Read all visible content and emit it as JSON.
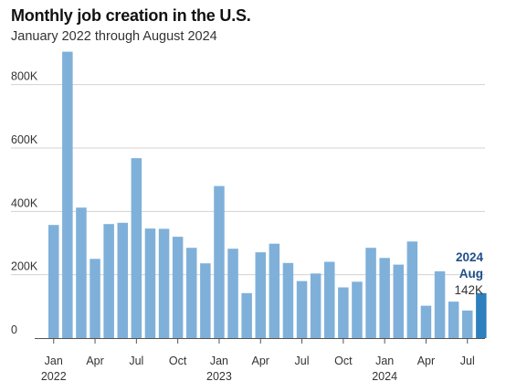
{
  "header": {
    "title": "Monthly job creation in the U.S.",
    "subtitle": "January 2022 through August 2024"
  },
  "colors": {
    "bar": "#7fb0d9",
    "bar_highlight": "#2d7fbd",
    "grid": "#d3d3d3",
    "annotation_dark": "#1f4e8a"
  },
  "chart_data": {
    "type": "bar",
    "title": "Monthly job creation in the U.S.",
    "subtitle": "January 2022 through August 2024",
    "xlabel": "",
    "ylabel": "",
    "ylim": [
      0,
      900000
    ],
    "grid": true,
    "y_ticks": [
      {
        "value": 0,
        "label": "0"
      },
      {
        "value": 200000,
        "label": "200K"
      },
      {
        "value": 400000,
        "label": "400K"
      },
      {
        "value": 600000,
        "label": "600K"
      },
      {
        "value": 800000,
        "label": "800K"
      }
    ],
    "categories": [
      "2022-01",
      "2022-02",
      "2022-03",
      "2022-04",
      "2022-05",
      "2022-06",
      "2022-07",
      "2022-08",
      "2022-09",
      "2022-10",
      "2022-11",
      "2022-12",
      "2023-01",
      "2023-02",
      "2023-03",
      "2023-04",
      "2023-05",
      "2023-06",
      "2023-07",
      "2023-08",
      "2023-09",
      "2023-10",
      "2023-11",
      "2023-12",
      "2024-01",
      "2024-02",
      "2024-03",
      "2024-04",
      "2024-05",
      "2024-06",
      "2024-07",
      "2024-08"
    ],
    "values": [
      357000,
      904000,
      412000,
      250000,
      360000,
      364000,
      568000,
      346000,
      345000,
      320000,
      285000,
      236000,
      480000,
      282000,
      142000,
      271000,
      298000,
      237000,
      180000,
      204000,
      241000,
      160000,
      178000,
      285000,
      253000,
      232000,
      305000,
      102000,
      211000,
      115000,
      87000,
      142000
    ],
    "x_tick_labels": [
      {
        "index": 0,
        "label": "Jan"
      },
      {
        "index": 3,
        "label": "Apr"
      },
      {
        "index": 6,
        "label": "Jul"
      },
      {
        "index": 9,
        "label": "Oct"
      },
      {
        "index": 12,
        "label": "Jan"
      },
      {
        "index": 15,
        "label": "Apr"
      },
      {
        "index": 18,
        "label": "Jul"
      },
      {
        "index": 21,
        "label": "Oct"
      },
      {
        "index": 24,
        "label": "Jan"
      },
      {
        "index": 27,
        "label": "Apr"
      },
      {
        "index": 30,
        "label": "Jul"
      }
    ],
    "year_labels": [
      {
        "index": 0,
        "label": "2022"
      },
      {
        "index": 12,
        "label": "2023"
      },
      {
        "index": 24,
        "label": "2024"
      }
    ],
    "highlight": {
      "index": 31,
      "year": "2024",
      "month": "Aug",
      "value_label": "142K"
    }
  }
}
